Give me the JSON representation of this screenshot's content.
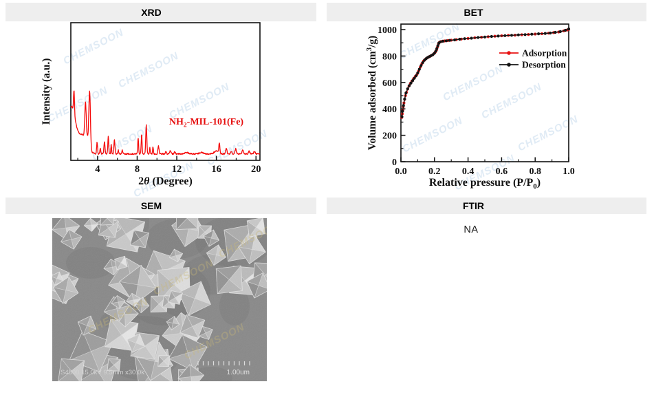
{
  "panels": {
    "xrd": {
      "header": "XRD"
    },
    "bet": {
      "header": "BET"
    },
    "sem": {
      "header": "SEM"
    },
    "ftir": {
      "header": "FTIR",
      "content": "NA"
    }
  },
  "header_style": {
    "bg": "#eeeeee",
    "text_color": "#000000"
  },
  "watermark": {
    "text": "CHEMSOON",
    "chart_color": "#e0ebf5",
    "sem_color": "#c9b878"
  },
  "chart_data": [
    {
      "id": "xrd",
      "type": "line",
      "xlabel": "2θ (Degree)",
      "xlabel_parts": [
        {
          "t": "2"
        },
        {
          "t": "θ",
          "s": "i"
        },
        {
          "t": " (Degree)"
        }
      ],
      "ylabel": "Intensity (a.u.)",
      "annotation": "NH2-MIL-101(Fe)",
      "annotation_parts": [
        {
          "t": "NH"
        },
        {
          "t": "2",
          "s": "sub"
        },
        {
          "t": "-MIL-101(Fe)"
        }
      ],
      "annotation_color": "#e60d0d",
      "line_color": "#f50c0c",
      "xlim": [
        1.3,
        20.4
      ],
      "x_major_ticks": [
        4,
        8,
        12,
        16,
        20
      ],
      "x_minor_ticks": [
        2,
        6,
        10,
        14,
        18
      ],
      "y_axis": "arbitrary units, no ticks",
      "baseline": 0.042,
      "noise_amp": 0.005,
      "peaks_2theta_height_width": [
        [
          1.35,
          0.34,
          0.6
        ],
        [
          1.62,
          0.17,
          0.07
        ],
        [
          2.5,
          0.13,
          0.6
        ],
        [
          2.78,
          0.255,
          0.1
        ],
        [
          2.98,
          0.05,
          0.18
        ],
        [
          3.2,
          0.415,
          0.11
        ],
        [
          3.95,
          0.085,
          0.065
        ],
        [
          4.28,
          0.04,
          0.06
        ],
        [
          4.7,
          0.085,
          0.075
        ],
        [
          5.08,
          0.125,
          0.065
        ],
        [
          5.38,
          0.065,
          0.055
        ],
        [
          5.7,
          0.1,
          0.07
        ],
        [
          6.1,
          0.025,
          0.06
        ],
        [
          6.5,
          0.028,
          0.07
        ],
        [
          8.1,
          0.115,
          0.065
        ],
        [
          8.45,
          0.145,
          0.06
        ],
        [
          8.92,
          0.21,
          0.075
        ],
        [
          9.28,
          0.045,
          0.05
        ],
        [
          9.6,
          0.05,
          0.06
        ],
        [
          10.15,
          0.055,
          0.08
        ],
        [
          10.9,
          0.02,
          0.07
        ],
        [
          11.35,
          0.022,
          0.09
        ],
        [
          11.8,
          0.015,
          0.08
        ],
        [
          13.0,
          0.01,
          0.25
        ],
        [
          14.5,
          0.01,
          0.25
        ],
        [
          16.0,
          0.02,
          0.3
        ],
        [
          16.3,
          0.075,
          0.07
        ],
        [
          17.0,
          0.04,
          0.09
        ],
        [
          17.5,
          0.02,
          0.08
        ],
        [
          17.95,
          0.035,
          0.1
        ],
        [
          18.65,
          0.03,
          0.09
        ],
        [
          19.3,
          0.018,
          0.09
        ],
        [
          19.85,
          0.02,
          0.1
        ]
      ]
    },
    {
      "id": "bet",
      "type": "scatter-line",
      "xlabel": "Relative pressure (P/P0)",
      "xlabel_parts": [
        {
          "t": "Relative pressure  (P/P"
        },
        {
          "t": "0",
          "s": "sub"
        },
        {
          "t": ")"
        }
      ],
      "ylabel": "Volume adsorbed (cm3/g)",
      "ylabel_parts": [
        {
          "t": "Volume adsorbed (cm"
        },
        {
          "t": "3",
          "s": "sup"
        },
        {
          "t": "/g)"
        }
      ],
      "xlim": [
        0.0,
        1.0
      ],
      "ylim": [
        0,
        1000
      ],
      "x_major_step": 0.2,
      "x_minor_step": 0.1,
      "y_major_step": 200,
      "y_minor_step": 100,
      "legend_position": "inside upper right",
      "series": [
        {
          "name": "Adsorption",
          "color": "#e81212",
          "marker": "circle",
          "points": [
            [
              0.005,
              335
            ],
            [
              0.008,
              362
            ],
            [
              0.011,
              390
            ],
            [
              0.014,
              415
            ],
            [
              0.018,
              445
            ],
            [
              0.022,
              472
            ],
            [
              0.027,
              500
            ],
            [
              0.033,
              525
            ],
            [
              0.04,
              550
            ],
            [
              0.048,
              572
            ],
            [
              0.056,
              592
            ],
            [
              0.065,
              610
            ],
            [
              0.075,
              628
            ],
            [
              0.085,
              645
            ],
            [
              0.095,
              660
            ],
            [
              0.105,
              685
            ],
            [
              0.115,
              715
            ],
            [
              0.125,
              742
            ],
            [
              0.135,
              762
            ],
            [
              0.145,
              775
            ],
            [
              0.155,
              785
            ],
            [
              0.165,
              792
            ],
            [
              0.175,
              799
            ],
            [
              0.185,
              806
            ],
            [
              0.195,
              816
            ],
            [
              0.205,
              830
            ],
            [
              0.212,
              845
            ],
            [
              0.218,
              868
            ],
            [
              0.224,
              892
            ],
            [
              0.23,
              904
            ],
            [
              0.24,
              910
            ],
            [
              0.26,
              914
            ],
            [
              0.28,
              917
            ],
            [
              0.3,
              920
            ],
            [
              0.33,
              924
            ],
            [
              0.36,
              928
            ],
            [
              0.4,
              933
            ],
            [
              0.44,
              938
            ],
            [
              0.48,
              942
            ],
            [
              0.52,
              946
            ],
            [
              0.56,
              950
            ],
            [
              0.6,
              953
            ],
            [
              0.64,
              956
            ],
            [
              0.68,
              958
            ],
            [
              0.72,
              961
            ],
            [
              0.76,
              963
            ],
            [
              0.8,
              966
            ],
            [
              0.84,
              969
            ],
            [
              0.88,
              973
            ],
            [
              0.91,
              977
            ],
            [
              0.94,
              982
            ],
            [
              0.97,
              990
            ],
            [
              0.99,
              997
            ],
            [
              1.0,
              1002
            ]
          ]
        },
        {
          "name": "Desorption",
          "color": "#141414",
          "marker": "circle",
          "points": [
            [
              1.0,
              1005
            ],
            [
              0.98,
              995
            ],
            [
              0.95,
              985
            ],
            [
              0.92,
              979
            ],
            [
              0.89,
              974
            ],
            [
              0.86,
              971
            ],
            [
              0.82,
              968
            ],
            [
              0.78,
              965
            ],
            [
              0.74,
              962
            ],
            [
              0.7,
              960
            ],
            [
              0.66,
              957
            ],
            [
              0.62,
              954
            ],
            [
              0.58,
              951
            ],
            [
              0.54,
              948
            ],
            [
              0.5,
              944
            ],
            [
              0.46,
              940
            ],
            [
              0.42,
              935
            ],
            [
              0.38,
              931
            ],
            [
              0.35,
              927
            ],
            [
              0.32,
              922
            ],
            [
              0.29,
              918
            ],
            [
              0.27,
              915
            ],
            [
              0.25,
              912
            ],
            [
              0.235,
              907
            ],
            [
              0.226,
              898
            ],
            [
              0.22,
              878
            ],
            [
              0.214,
              856
            ],
            [
              0.208,
              838
            ],
            [
              0.2,
              822
            ],
            [
              0.19,
              810
            ],
            [
              0.18,
              803
            ],
            [
              0.17,
              796
            ],
            [
              0.16,
              789
            ],
            [
              0.15,
              780
            ],
            [
              0.14,
              768
            ],
            [
              0.13,
              750
            ],
            [
              0.12,
              728
            ],
            [
              0.11,
              700
            ],
            [
              0.1,
              672
            ],
            [
              0.09,
              650
            ],
            [
              0.08,
              632
            ],
            [
              0.07,
              614
            ],
            [
              0.06,
              596
            ],
            [
              0.05,
              576
            ],
            [
              0.04,
              552
            ],
            [
              0.03,
              520
            ],
            [
              0.022,
              474
            ],
            [
              0.015,
              425
            ],
            [
              0.01,
              382
            ],
            [
              0.006,
              340
            ]
          ]
        }
      ]
    }
  ],
  "sem": {
    "caption": "S4800 15.0kV 9.5mm x30.0k",
    "scale_label": "1.00um",
    "scale_tick_count": 11,
    "render": {
      "seed": 11,
      "bg": "#898989",
      "crystal_count": 58
    }
  }
}
